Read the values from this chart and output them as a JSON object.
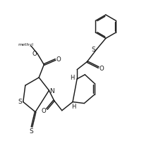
{
  "bg_color": "#ffffff",
  "line_color": "#1a1a1a",
  "line_width": 1.05,
  "fig_width": 2.04,
  "fig_height": 2.28,
  "dpi": 100,
  "xlim": [
    0,
    10
  ],
  "ylim": [
    0,
    11.2
  ]
}
